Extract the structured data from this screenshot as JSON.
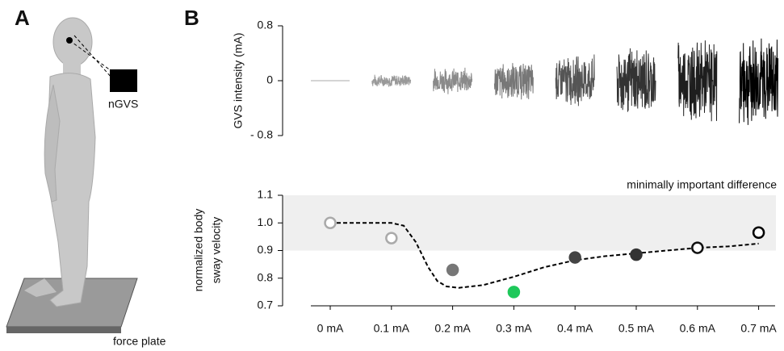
{
  "figure": {
    "panel_a": "A",
    "panel_b": "B",
    "ngvs_label": "nGVS",
    "plate_label": "force plate"
  },
  "chart_data": [
    {
      "type": "noise",
      "ylabel": "GVS intensity (mA)",
      "ylim": [
        -0.8,
        0.8
      ],
      "yticks": [
        {
          "value": 0.8,
          "label": "0.8"
        },
        0,
        {
          "value": -0.8,
          "label": "- 0.8"
        }
      ],
      "values": [
        0,
        0.1,
        0.2,
        0.3,
        0.4,
        0.55,
        0.65,
        0.7
      ],
      "colors": [
        "#aaaaaa",
        "#999999",
        "#8a8a8a",
        "#777777",
        "#555555",
        "#333333",
        "#1e1e1e",
        "#000000"
      ]
    },
    {
      "type": "scatter",
      "ylabel": [
        "normalized body",
        "sway velocity"
      ],
      "categories": [
        "0 mA",
        "0.1 mA",
        "0.2 mA",
        "0.3 mA",
        "0.4 mA",
        "0.5 mA",
        "0.6 mA",
        "0.7 mA"
      ],
      "values": [
        1.0,
        0.945,
        0.83,
        0.75,
        0.875,
        0.885,
        0.91,
        0.965
      ],
      "edge_colors": [
        "#aaaaaa",
        "#aaaaaa",
        "#777777",
        "#1ec85a",
        "#444444",
        "#333333",
        "#111111",
        "#000000"
      ],
      "face_colors": [
        "#ffffff",
        "#ffffff",
        "#777777",
        "#1ec85a",
        "#444444",
        "#333333",
        "#ffffff",
        "#ffffff"
      ],
      "ylim": [
        0.7,
        1.1
      ],
      "yticks": [
        0.7,
        0.8,
        0.9,
        {
          "value": 1.0,
          "label": "1.0"
        },
        1.1
      ],
      "band": [
        0.9,
        1.1
      ],
      "band_label": "minimally important difference",
      "band_color": "#efefef",
      "fit": {
        "x": [
          0,
          0.5,
          1,
          1.2,
          1.4,
          1.6,
          1.75,
          1.9,
          2.1,
          2.5,
          3,
          3.5,
          4,
          4.5,
          5,
          5.5,
          6,
          6.5,
          7
        ],
        "y": [
          1.0,
          1.0,
          1.0,
          0.99,
          0.93,
          0.84,
          0.79,
          0.77,
          0.765,
          0.775,
          0.805,
          0.84,
          0.865,
          0.88,
          0.89,
          0.9,
          0.91,
          0.915,
          0.925
        ]
      }
    }
  ]
}
